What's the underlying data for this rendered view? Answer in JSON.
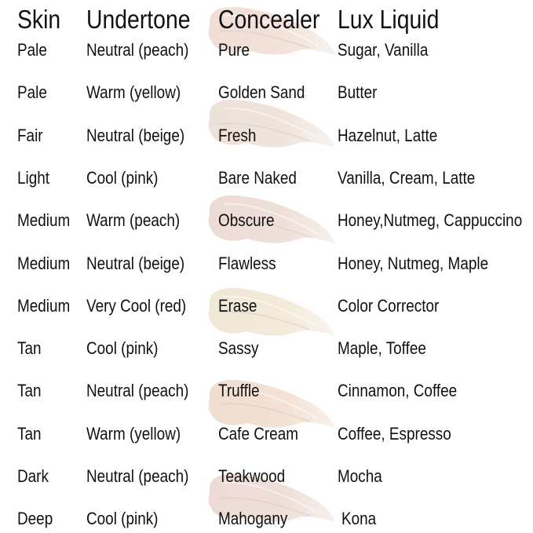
{
  "headers": [
    "Skin",
    "Undertone",
    "Concealer",
    "Lux Liquid"
  ],
  "rows": [
    {
      "skin": "Pale",
      "undertone": "Neutral (peach)",
      "concealer": "Pure",
      "lux_liquid": "Sugar, Vanilla"
    },
    {
      "skin": "Pale",
      "undertone": "Warm (yellow)",
      "concealer": "Golden Sand",
      "lux_liquid": "Butter"
    },
    {
      "skin": "Fair",
      "undertone": "Neutral (beige)",
      "concealer": "Fresh",
      "lux_liquid": "Hazelnut, Latte"
    },
    {
      "skin": "Light",
      "undertone": "Cool (pink)",
      "concealer": "Bare Naked",
      "lux_liquid": "Vanilla, Cream, Latte"
    },
    {
      "skin": "Medium",
      "undertone": "Warm (peach)",
      "concealer": "Obscure",
      "lux_liquid": "Honey,Nutmeg, Cappuccino"
    },
    {
      "skin": "Medium",
      "undertone": "Neutral (beige)",
      "concealer": "Flawless",
      "lux_liquid": "Honey, Nutmeg, Maple"
    },
    {
      "skin": "Medium",
      "undertone": "Very Cool (red)",
      "concealer": "Erase",
      "lux_liquid": "Color Corrector"
    },
    {
      "skin": "Tan",
      "undertone": "Cool (pink)",
      "concealer": "Sassy",
      "lux_liquid": "Maple, Toffee"
    },
    {
      "skin": "Tan",
      "undertone": "Neutral (peach)",
      "concealer": "Truffle",
      "lux_liquid": "Cinnamon, Coffee"
    },
    {
      "skin": "Tan",
      "undertone": "Warm (yellow)",
      "concealer": "Cafe Cream",
      "lux_liquid": "Coffee, Espresso"
    },
    {
      "skin": "Dark",
      "undertone": "Neutral (peach)",
      "concealer": "Teakwood",
      "lux_liquid": "Mocha"
    },
    {
      "skin": "Deep",
      "undertone": "Cool (pink)",
      "concealer": "Mahogany",
      "lux_liquid": "Kona"
    }
  ],
  "swatch_colors": [
    "#f0ddd3",
    "#ece0d6",
    "#ecdad3",
    "#f1e6d4",
    "#f0dccd",
    "#ecd9d2"
  ]
}
